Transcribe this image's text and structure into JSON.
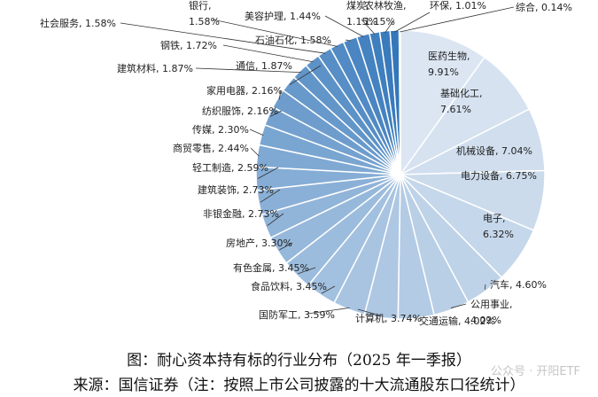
{
  "chart_data": {
    "type": "pie",
    "unit": "%",
    "slices": [
      {
        "label": "医药生物",
        "value": 9.91,
        "text": "医药生物,\n9.91%"
      },
      {
        "label": "基础化工",
        "value": 7.61,
        "text": "基础化工,\n7.61%"
      },
      {
        "label": "机械设备",
        "value": 7.04,
        "text": "机械设备, 7.04%"
      },
      {
        "label": "电力设备",
        "value": 6.75,
        "text": "电力设备, 6.75%"
      },
      {
        "label": "电子",
        "value": 6.32,
        "text": "电子,\n6.32%"
      },
      {
        "label": "汽车",
        "value": 4.6,
        "text": "汽车, 4.60%"
      },
      {
        "label": "公用事业",
        "value": 4.02,
        "text": "公用事业,\n4.02%"
      },
      {
        "label": "交通运输",
        "value": 4.02,
        "text": "交通运输, 4.02%"
      },
      {
        "label": "计算机",
        "value": 3.74,
        "text": "计算机, 3.74%"
      },
      {
        "label": "国防军工",
        "value": 3.59,
        "text": "国防军工, 3.59%"
      },
      {
        "label": "食品饮料",
        "value": 3.45,
        "text": "食品饮料, 3.45%"
      },
      {
        "label": "有色金属",
        "value": 3.45,
        "text": "有色金属, 3.45%"
      },
      {
        "label": "房地产",
        "value": 3.3,
        "text": "房地产, 3.30%"
      },
      {
        "label": "非银金融",
        "value": 2.73,
        "text": "非银金融, 2.73%"
      },
      {
        "label": "建筑装饰",
        "value": 2.73,
        "text": "建筑装饰, 2.73%"
      },
      {
        "label": "轻工制造",
        "value": 2.59,
        "text": "轻工制造, 2.59%"
      },
      {
        "label": "商贸零售",
        "value": 2.44,
        "text": "商贸零售, 2.44%"
      },
      {
        "label": "传媒",
        "value": 2.3,
        "text": "传媒, 2.30%"
      },
      {
        "label": "纺织服饰",
        "value": 2.16,
        "text": "纺织服饰, 2.16%"
      },
      {
        "label": "家用电器",
        "value": 2.16,
        "text": "家用电器, 2.16%"
      },
      {
        "label": "通信",
        "value": 1.87,
        "text": "通信, 1.87%"
      },
      {
        "label": "建筑材料",
        "value": 1.87,
        "text": "建筑材料, 1.87%"
      },
      {
        "label": "钢铁",
        "value": 1.72,
        "text": "钢铁, 1.72%"
      },
      {
        "label": "社会服务",
        "value": 1.58,
        "text": "社会服务, 1.58%"
      },
      {
        "label": "银行",
        "value": 1.58,
        "text": "银行,\n1.58%"
      },
      {
        "label": "石油石化",
        "value": 1.58,
        "text": "石油石化, 1.58%"
      },
      {
        "label": "美容护理",
        "value": 1.44,
        "text": "美容护理, 1.44%"
      },
      {
        "label": "煤炭",
        "value": 1.15,
        "text": "煤炭,\n1.15%"
      },
      {
        "label": "农林牧渔",
        "value": 1.15,
        "text": "农林牧渔,\n1.15%"
      },
      {
        "label": "环保",
        "value": 1.01,
        "text": "环保, 1.01%"
      },
      {
        "label": "综合",
        "value": 0.14,
        "text": "综合, 0.14%"
      }
    ],
    "colors": {
      "light": "#dce6f2",
      "dark": "#2e73b8",
      "border": "#ffffff",
      "leader": "#333333",
      "label": "#222222"
    },
    "start_angle": "12 o'clock",
    "direction": "clockwise",
    "legend": "none"
  },
  "captions": {
    "line1": "图：耐心资本持有标的行业分布（2025 年一季报）",
    "line2": "来源：国信证券（注：按照上市公司披露的十大流通股东口径统计）"
  },
  "watermark": "公众号 · 开阳ETF"
}
